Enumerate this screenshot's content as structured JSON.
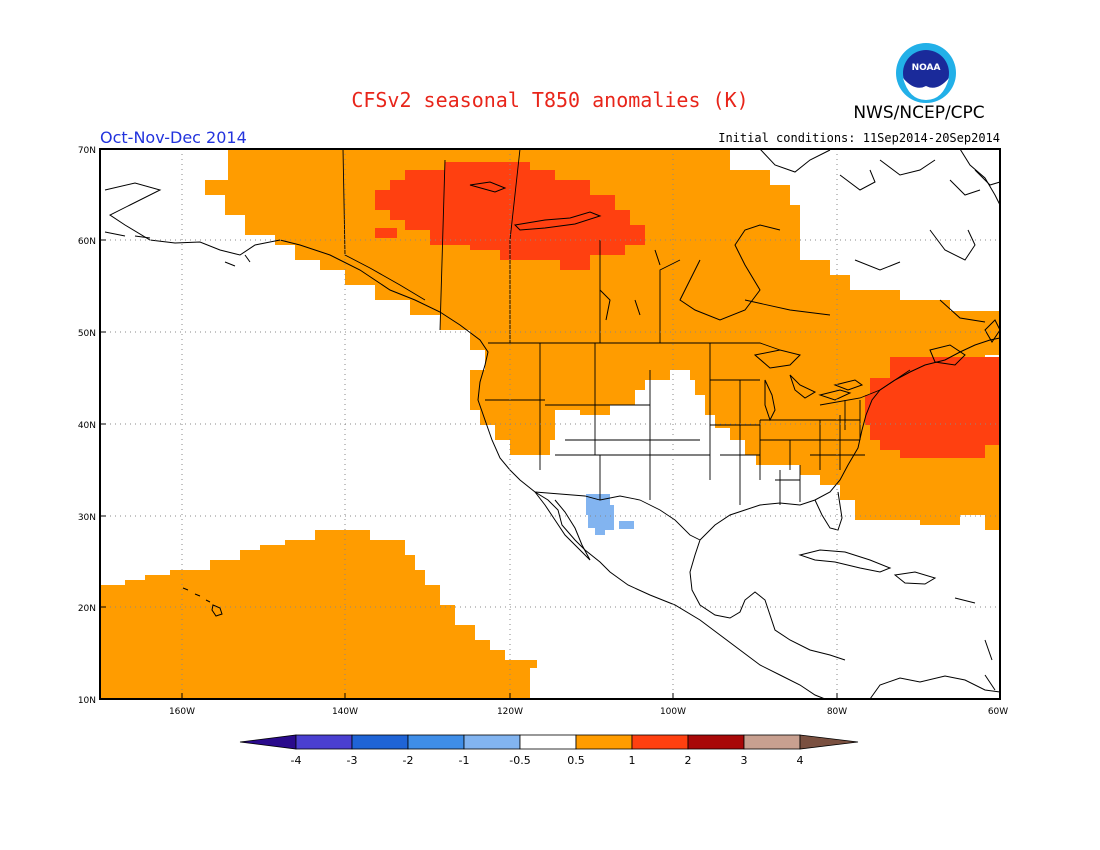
{
  "title": "CFSv2 seasonal T850 anomalies (K)",
  "agency": "NWS/NCEP/CPC",
  "logo_text": "NOAA",
  "period": "Oct-Nov-Dec 2014",
  "initial_conditions": "Initial conditions: 11Sep2014-20Sep2014",
  "map": {
    "lon_range": [
      -170,
      -60
    ],
    "lat_range": [
      10,
      70
    ],
    "lat_ticks": [
      "70N",
      "60N",
      "50N",
      "40N",
      "30N",
      "20N",
      "10N"
    ],
    "lon_ticks": [
      "160W",
      "140W",
      "120W",
      "100W",
      "80W",
      "60W"
    ],
    "grid": "dotted"
  },
  "colorbar": {
    "labels": [
      "-4",
      "-3",
      "-2",
      "-1",
      "-0.5",
      "0.5",
      "1",
      "2",
      "3",
      "4"
    ],
    "colors": [
      "#2a0a8c",
      "#4a3fd0",
      "#1f64d6",
      "#3f8ee8",
      "#82b4f0",
      "#ffffff",
      "#ff9c00",
      "#ff4010",
      "#a80808",
      "#c8a090",
      "#7a5040"
    ]
  },
  "anomaly_regions": [
    {
      "name": "north-pacific-alaska-canada",
      "class": "0.5 to 1",
      "color": "#ff9c00"
    },
    {
      "name": "tropical-pacific-hawaii",
      "class": "0.5 to 1",
      "color": "#ff9c00"
    },
    {
      "name": "northern-canada",
      "class": "1 to 2",
      "color": "#ff4010"
    },
    {
      "name": "northeast-us-atlantic",
      "class": "1 to 2",
      "color": "#ff4010"
    },
    {
      "name": "southwest-us-mexico",
      "class": "-1 to -0.5",
      "color": "#82b4f0"
    }
  ]
}
